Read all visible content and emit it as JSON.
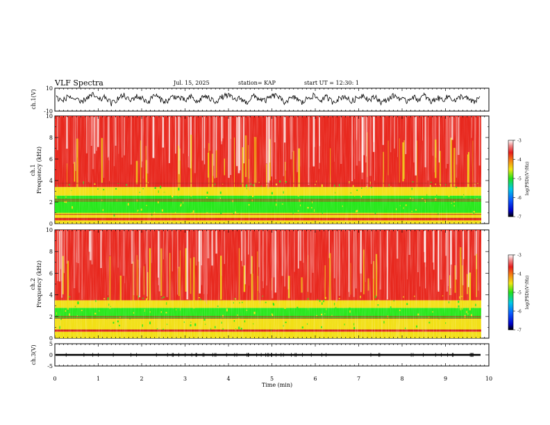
{
  "header": {
    "title": "VLF Spectra",
    "date": "Jul. 15, 2025",
    "station": "station= KAP",
    "start": "start UT = 12:30: 1"
  },
  "colors": {
    "wave": "#000000",
    "band_red": "#e8281e",
    "band_green": "#27e81b",
    "band_yellow": "#f2df16",
    "white": "#ffffff"
  },
  "chart_data": [
    {
      "type": "line",
      "name": "ch.1 waveform",
      "ylabel": "ch.1(V)",
      "ylim": [
        -10,
        10
      ],
      "yticks": [
        "10",
        "-10"
      ],
      "xlim": [
        0,
        9.85
      ],
      "y": [
        2.1,
        -1.4,
        3.2,
        0.5,
        -2.8,
        1.9,
        4.1,
        -0.6,
        2.4,
        -3.5,
        0.8,
        3.7,
        -1.2,
        2.9,
        1.1,
        -2.2,
        4.5,
        0.2,
        -1.8,
        3.0,
        1.6,
        -0.9,
        2.5,
        -2.6,
        3.4,
        0.7,
        -1.5,
        2.2,
        4.0,
        -0.3,
        1.3,
        -2.9,
        3.1,
        0.9,
        -1.1,
        2.7,
        3.8,
        -2.4,
        0.4,
        2.0,
        -3.1,
        1.8,
        3.5,
        -0.8,
        2.3,
        -1.9,
        0.6,
        3.3,
        -2.0,
        1.4,
        4.2,
        -0.5,
        2.6,
        -2.7,
        0.3,
        3.6,
        1.0,
        -1.6,
        2.8,
        -0.2,
        3.9,
        -2.3,
        1.5,
        0.1,
        2.9,
        -1.3,
        3.2,
        0.6,
        -2.5,
        2.1
      ]
    },
    {
      "type": "heatmap",
      "name": "ch.1 spectrogram",
      "ylabel": "ch.1\nFrequency (kHz)",
      "ylim": [
        0,
        10
      ],
      "yticks": [
        "10",
        "8",
        "6",
        "4",
        "2",
        "0"
      ],
      "bands": [
        {
          "from": 0.0,
          "to": 0.3,
          "level": "yellow"
        },
        {
          "from": 0.3,
          "to": 0.5,
          "level": "red"
        },
        {
          "from": 0.5,
          "to": 1.0,
          "level": "yellow"
        },
        {
          "from": 1.0,
          "to": 2.6,
          "level": "green"
        },
        {
          "from": 2.6,
          "to": 3.4,
          "level": "yellow"
        },
        {
          "from": 3.4,
          "to": 10.0,
          "level": "red"
        }
      ],
      "lines_khz": [
        0.5,
        0.85,
        2.1,
        2.25,
        3.75
      ]
    },
    {
      "type": "heatmap",
      "name": "ch.2 spectrogram",
      "ylabel": "ch.2\nFrequency (kHz)",
      "ylim": [
        0,
        10
      ],
      "yticks": [
        "10",
        "8",
        "6",
        "4",
        "2",
        "0"
      ],
      "bands": [
        {
          "from": 0.0,
          "to": 0.6,
          "level": "yellow"
        },
        {
          "from": 0.6,
          "to": 0.8,
          "level": "red"
        },
        {
          "from": 0.8,
          "to": 1.8,
          "level": "yellow"
        },
        {
          "from": 1.8,
          "to": 2.8,
          "level": "green"
        },
        {
          "from": 2.8,
          "to": 3.5,
          "level": "yellow"
        },
        {
          "from": 3.5,
          "to": 10.0,
          "level": "red"
        }
      ],
      "lines_khz": [
        0.75,
        1.85,
        2.0
      ]
    },
    {
      "type": "line",
      "name": "ch.3 waveform",
      "ylabel": "ch.3(V)",
      "ylim": [
        -5,
        5
      ],
      "yticks": [
        "5",
        "0",
        "-5"
      ],
      "band": [
        -0.4,
        0.4
      ]
    }
  ],
  "xaxis": {
    "label": "Time (min)",
    "range": [
      0,
      10
    ],
    "ticks": [
      "0",
      "1",
      "2",
      "3",
      "4",
      "5",
      "6",
      "7",
      "8",
      "9",
      "10"
    ]
  },
  "colorbars": [
    {
      "label": "log(PSD)(V²/Hz)",
      "ticks": [
        "-3",
        "-4",
        "-5",
        "-6",
        "-7"
      ],
      "range": [
        -7,
        -3
      ]
    },
    {
      "label": "log(PSD)(V²/Hz)",
      "ticks": [
        "-3",
        "-4",
        "-5",
        "-6",
        "-7"
      ],
      "range": [
        -7,
        -3
      ]
    }
  ]
}
